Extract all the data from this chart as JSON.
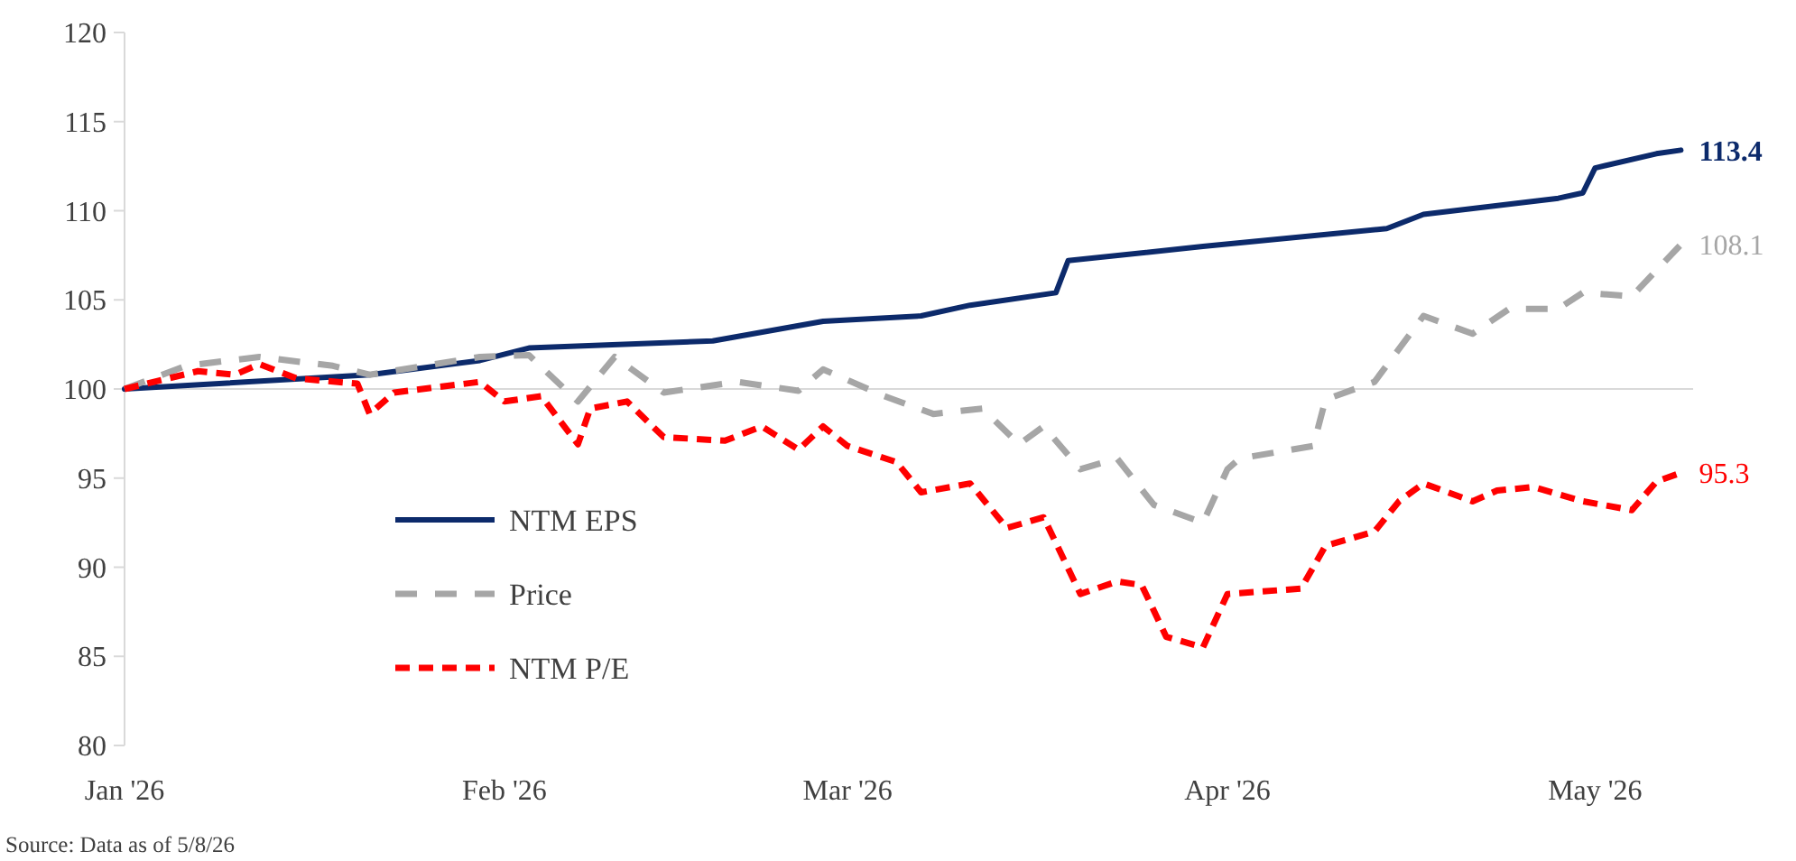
{
  "chart_data": {
    "type": "line",
    "xlim": [
      "2026-01-01",
      "2026-05-09"
    ],
    "xticks": [
      {
        "value": "2026-01-01",
        "label": "Jan '26"
      },
      {
        "value": "2026-02-01",
        "label": "Feb '26"
      },
      {
        "value": "2026-03-01",
        "label": "Mar '26"
      },
      {
        "value": "2026-04-01",
        "label": "Apr '26"
      },
      {
        "value": "2026-05-01",
        "label": "May '26"
      }
    ],
    "ylim": [
      80,
      120
    ],
    "yticks": [
      80,
      85,
      90,
      95,
      100,
      105,
      110,
      115,
      120
    ],
    "grid": false,
    "ref_lines": [
      {
        "axis": "y",
        "value": 100,
        "color": "#d9d9d9"
      }
    ],
    "legend": "bottom left",
    "marker": "none",
    "series": [
      {
        "name": "NTM EPS",
        "color": "#0c2a6b",
        "line_style": "solid",
        "x": [
          "2026-01-01",
          "2026-01-21",
          "2026-01-30",
          "2026-02-03",
          "2026-02-18",
          "2026-02-27",
          "2026-03-07",
          "2026-03-11",
          "2026-03-18",
          "2026-03-19",
          "2026-03-30",
          "2026-04-14",
          "2026-04-17",
          "2026-04-28",
          "2026-04-30",
          "2026-05-01",
          "2026-05-06",
          "2026-05-08"
        ],
        "values": [
          100,
          100.8,
          101.6,
          102.3,
          102.7,
          103.8,
          104.1,
          104.7,
          105.4,
          107.2,
          108.0,
          109.0,
          109.8,
          110.7,
          111.0,
          112.4,
          113.2,
          113.4
        ]
      },
      {
        "name": "Price",
        "color": "#a6a6a6",
        "line_style": "dashed",
        "x": [
          "2026-01-01",
          "2026-01-06",
          "2026-01-12",
          "2026-01-18",
          "2026-01-21",
          "2026-01-30",
          "2026-02-03",
          "2026-02-07",
          "2026-02-10",
          "2026-02-14",
          "2026-02-20",
          "2026-02-25",
          "2026-02-27",
          "2026-03-04",
          "2026-03-08",
          "2026-03-12",
          "2026-03-15",
          "2026-03-17",
          "2026-03-20",
          "2026-03-23",
          "2026-03-26",
          "2026-03-30",
          "2026-04-01",
          "2026-04-02",
          "2026-04-08",
          "2026-04-09",
          "2026-04-13",
          "2026-04-17",
          "2026-04-21",
          "2026-04-24",
          "2026-04-28",
          "2026-04-30",
          "2026-05-04",
          "2026-05-08"
        ],
        "values": [
          100,
          101.3,
          101.8,
          101.3,
          100.8,
          101.8,
          101.9,
          99.3,
          101.8,
          99.8,
          100.4,
          99.9,
          101.1,
          99.6,
          98.6,
          98.9,
          96.9,
          97.9,
          95.5,
          96.1,
          93.5,
          92.5,
          95.5,
          96.1,
          96.8,
          99.4,
          100.4,
          104.1,
          103.1,
          104.5,
          104.5,
          105.4,
          105.2,
          108.1
        ]
      },
      {
        "name": "NTM P/E",
        "color": "#ff0000",
        "line_style": "dotted",
        "x": [
          "2026-01-01",
          "2026-01-07",
          "2026-01-10",
          "2026-01-12",
          "2026-01-15",
          "2026-01-20",
          "2026-01-21",
          "2026-01-23",
          "2026-01-30",
          "2026-02-01",
          "2026-02-04",
          "2026-02-07",
          "2026-02-08",
          "2026-02-11",
          "2026-02-14",
          "2026-02-19",
          "2026-02-22",
          "2026-02-25",
          "2026-02-27",
          "2026-03-01",
          "2026-03-05",
          "2026-03-07",
          "2026-03-11",
          "2026-03-14",
          "2026-03-17",
          "2026-03-20",
          "2026-03-23",
          "2026-03-25",
          "2026-03-27",
          "2026-03-30",
          "2026-04-01",
          "2026-04-07",
          "2026-04-09",
          "2026-04-13",
          "2026-04-15",
          "2026-04-17",
          "2026-04-21",
          "2026-04-23",
          "2026-04-26",
          "2026-04-30",
          "2026-05-04",
          "2026-05-06",
          "2026-05-08"
        ],
        "values": [
          100,
          101.0,
          100.8,
          101.4,
          100.6,
          100.3,
          98.6,
          99.8,
          100.4,
          99.3,
          99.6,
          96.9,
          98.9,
          99.3,
          97.3,
          97.1,
          97.9,
          96.6,
          97.9,
          96.8,
          95.9,
          94.2,
          94.7,
          92.2,
          92.8,
          88.5,
          89.2,
          89.0,
          86.1,
          85.5,
          88.5,
          88.8,
          91.2,
          92.0,
          93.7,
          94.7,
          93.7,
          94.3,
          94.5,
          93.7,
          93.2,
          94.8,
          95.3
        ]
      }
    ],
    "annotations": [
      {
        "text": "113.4",
        "x": "2026-05-08",
        "y": 113.4
      },
      {
        "text": "108.1",
        "x": "2026-05-08",
        "y": 108.1
      },
      {
        "text": "95.3",
        "x": "2026-05-08",
        "y": 95.3
      },
      "Source: Data as of 5/8/26"
    ]
  }
}
